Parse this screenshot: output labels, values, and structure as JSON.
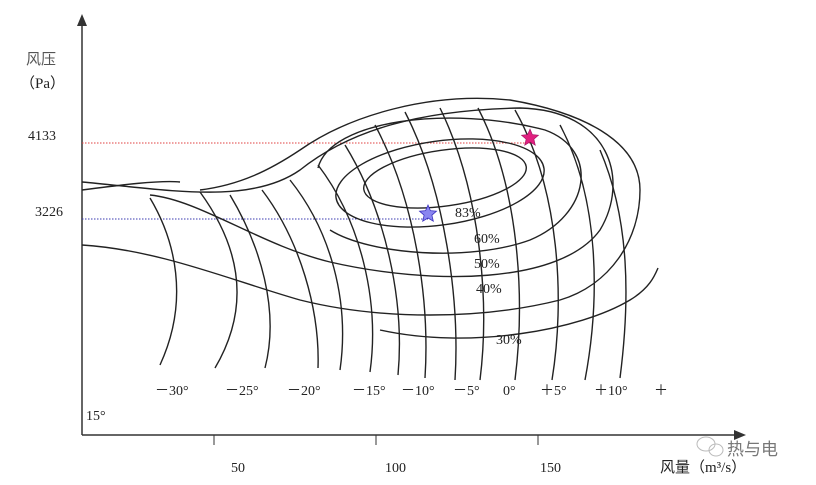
{
  "y_axis": {
    "label": "风压",
    "unit": "（Pa）",
    "ticks": [
      "4133",
      "3226"
    ]
  },
  "x_axis": {
    "label": "风量（m³/s）",
    "ticks": [
      "50",
      "100",
      "150"
    ]
  },
  "efficiency_labels": [
    "83%",
    "60%",
    "50%",
    "40%",
    "30%"
  ],
  "blade_angles": [
    "－30°",
    "－25°",
    "－20°",
    "－15°",
    "－10°",
    "－5°",
    "0°",
    "＋5°",
    "＋10°",
    "＋",
    "15°"
  ],
  "markers": {
    "design_point_color": "#e0207f",
    "operating_point_color": "#5a4fe0",
    "reference_line_4133_color": "#e04040",
    "reference_line_3226_color": "#3a3ab0"
  },
  "watermark": "热与电"
}
